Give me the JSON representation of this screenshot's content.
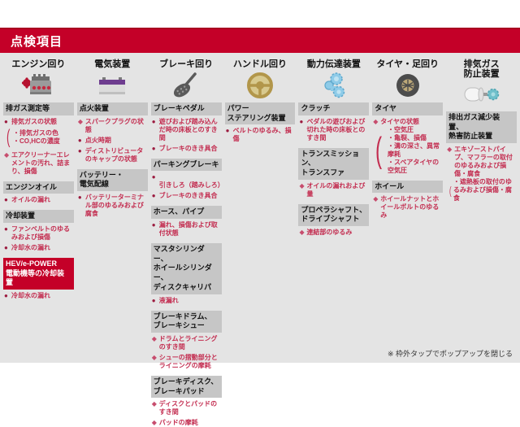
{
  "title": "点検項目",
  "footer_note": "※ 枠外タップでポップアップを閉じる",
  "colors": {
    "accent_red": "#c40028",
    "item_text": "#c32d50",
    "section_header_bg": "#c6c6c6",
    "popup_bg": "#e4e4e4"
  },
  "columns": [
    {
      "label": "エンジン回り",
      "icon": "engine-icon",
      "sections": [
        {
          "heading": "排ガス測定等",
          "variant": "gray",
          "items": [
            {
              "bullet": "●",
              "text": "排気ガスの状態",
              "subitems": [
                "・排気ガスの色",
                "・CO,HCの濃度"
              ]
            },
            {
              "bullet": "◆",
              "text": "エアクリーナーエレメントの汚れ、詰まり、損傷"
            }
          ]
        },
        {
          "heading": "エンジンオイル",
          "variant": "gray",
          "items": [
            {
              "bullet": "●",
              "text": "オイルの漏れ"
            }
          ]
        },
        {
          "heading": "冷却装置",
          "variant": "gray",
          "items": [
            {
              "bullet": "●",
              "text": "ファンベルトのゆるみおよび損傷"
            },
            {
              "bullet": "●",
              "text": "冷却水の漏れ"
            }
          ]
        },
        {
          "heading": "HEV/e-POWER\n電動機等の冷却装置",
          "variant": "red",
          "items": [
            {
              "bullet": "●",
              "text": "冷却水の漏れ"
            }
          ]
        }
      ]
    },
    {
      "label": "電気装置",
      "icon": "battery-icon",
      "sections": [
        {
          "heading": "点火装置",
          "variant": "gray",
          "items": [
            {
              "bullet": "◆",
              "text": "スパークプラグの状態"
            },
            {
              "bullet": "●",
              "text": "点火時期"
            },
            {
              "bullet": "●",
              "text": "ディストリビュータのキャップの状態"
            }
          ]
        },
        {
          "heading": "バッテリー・\n電気配線",
          "variant": "gray",
          "items": [
            {
              "bullet": "●",
              "text": "バッテリーターミナル部のゆるみおよび腐食"
            }
          ]
        }
      ]
    },
    {
      "label": "ブレーキ回り",
      "icon": "brake-pedal-icon",
      "sections": [
        {
          "heading": "ブレーキペダル",
          "variant": "gray",
          "items": [
            {
              "bullet": "●",
              "text": "遊びおよび踏み込んだ時の床板とのすき間"
            },
            {
              "bullet": "●",
              "text": "ブレーキのきき具合"
            }
          ]
        },
        {
          "heading": "パーキングブレーキ",
          "variant": "gray",
          "items": [
            {
              "bullet": "●",
              "text": "引きしろ（踏みしろ）"
            },
            {
              "bullet": "●",
              "text": "ブレーキのきき具合"
            }
          ]
        },
        {
          "heading": "ホース、パイプ",
          "variant": "gray",
          "items": [
            {
              "bullet": "●",
              "text": "漏れ、損傷および取付状態"
            }
          ]
        },
        {
          "heading": "マスタシリンダー、\nホイールシリンダー、\nディスクキャリパ",
          "variant": "gray",
          "items": [
            {
              "bullet": "●",
              "text": "液漏れ"
            }
          ]
        },
        {
          "heading": "ブレーキドラム、\nブレーキシュー",
          "variant": "gray",
          "items": [
            {
              "bullet": "◆",
              "text": "ドラムとライニングのすき間"
            },
            {
              "bullet": "◆",
              "text": "シューの摺動部分とライニングの摩耗"
            }
          ]
        },
        {
          "heading": "ブレーキディスク、\nブレーキパッド",
          "variant": "gray",
          "items": [
            {
              "bullet": "◆",
              "text": "ディスクとパッドのすき間"
            },
            {
              "bullet": "◆",
              "text": "パッドの摩耗"
            }
          ]
        }
      ]
    },
    {
      "label": "ハンドル回り",
      "icon": "steering-wheel-icon",
      "sections": [
        {
          "heading": "パワー\nステアリング装置",
          "variant": "gray",
          "items": [
            {
              "bullet": "●",
              "text": "ベルトのゆるみ、損傷"
            }
          ]
        }
      ]
    },
    {
      "label": "動力伝達装置",
      "icon": "transmission-icon",
      "sections": [
        {
          "heading": "クラッチ",
          "variant": "gray",
          "items": [
            {
              "bullet": "●",
              "text": "ペダルの遊びおよび切れた時の床板とのすき間"
            }
          ]
        },
        {
          "heading": "トランスミッション、\nトランスファ",
          "variant": "gray",
          "items": [
            {
              "bullet": "◆",
              "text": "オイルの漏れおよび量"
            }
          ]
        },
        {
          "heading": "プロペラシャフト、\nドライブシャフト",
          "variant": "gray",
          "items": [
            {
              "bullet": "◆",
              "text": "連結部のゆるみ"
            }
          ]
        }
      ]
    },
    {
      "label": "タイヤ・足回り",
      "icon": "tire-icon",
      "sections": [
        {
          "heading": "タイヤ",
          "variant": "gray",
          "items": [
            {
              "bullet": "◆",
              "text": "タイヤの状態",
              "subitems": [
                "・空気圧",
                "・亀裂、損傷",
                "・溝の深さ、異常摩耗",
                "・スペアタイヤの空気圧"
              ]
            }
          ]
        },
        {
          "heading": "ホイール",
          "variant": "gray",
          "items": [
            {
              "bullet": "◆",
              "text": "ホイールナットとホイールボルトのゆるみ"
            }
          ]
        }
      ]
    },
    {
      "label": "排気ガス\n防止装置",
      "icon": "muffler-icon",
      "sections": [
        {
          "heading": "排出ガス減少装置、\n熱害防止装置",
          "variant": "gray",
          "items": [
            {
              "bullet": "◆",
              "text": "エキゾーストパイプ、マフラーの取付のゆるみおよび損傷・腐食",
              "subitems": [
                "・遮熱板の取付のゆるみおよび損傷・腐食"
              ]
            }
          ]
        }
      ]
    }
  ]
}
